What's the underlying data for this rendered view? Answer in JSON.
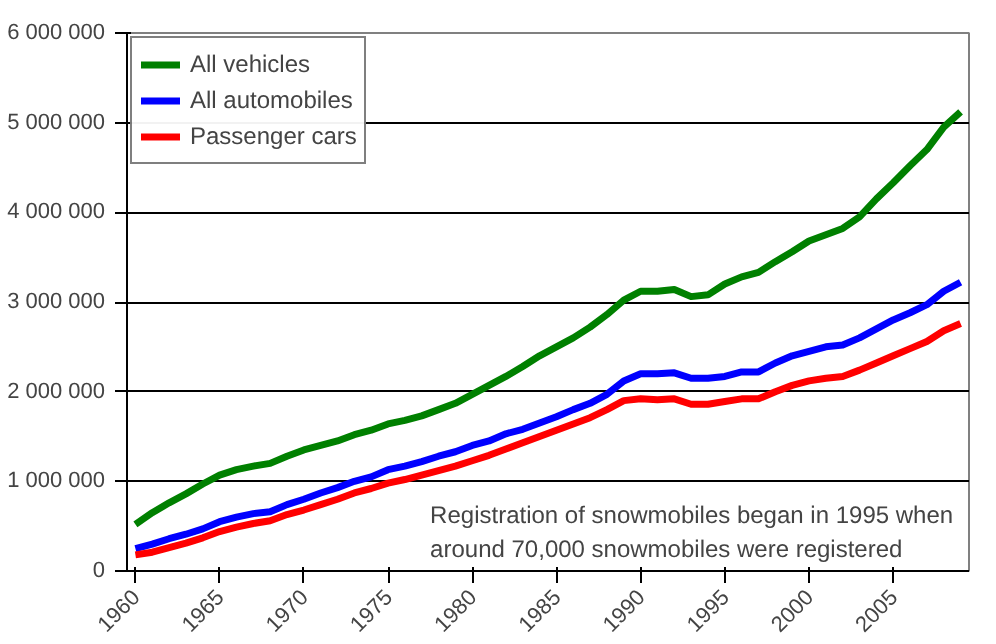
{
  "chart_data": {
    "type": "line",
    "x": [
      1960,
      1961,
      1962,
      1963,
      1964,
      1965,
      1966,
      1967,
      1968,
      1969,
      1970,
      1971,
      1972,
      1973,
      1974,
      1975,
      1976,
      1977,
      1978,
      1979,
      1980,
      1981,
      1982,
      1983,
      1984,
      1985,
      1986,
      1987,
      1988,
      1989,
      1990,
      1991,
      1992,
      1993,
      1994,
      1995,
      1996,
      1997,
      1998,
      1999,
      2000,
      2001,
      2002,
      2003,
      2004,
      2005,
      2006,
      2007,
      2008,
      2009
    ],
    "series": [
      {
        "name": "All vehicles",
        "color": "#008000",
        "values": [
          520000,
          650000,
          760000,
          860000,
          970000,
          1070000,
          1130000,
          1170000,
          1200000,
          1280000,
          1350000,
          1400000,
          1450000,
          1520000,
          1570000,
          1640000,
          1680000,
          1730000,
          1800000,
          1870000,
          1970000,
          2070000,
          2170000,
          2280000,
          2400000,
          2500000,
          2600000,
          2720000,
          2860000,
          3020000,
          3120000,
          3120000,
          3140000,
          3060000,
          3080000,
          3200000,
          3280000,
          3330000,
          3450000,
          3560000,
          3680000,
          3750000,
          3820000,
          3950000,
          4150000,
          4330000,
          4520000,
          4700000,
          4950000,
          5120000
        ]
      },
      {
        "name": "All automobiles",
        "color": "#0000ff",
        "values": [
          250000,
          300000,
          360000,
          410000,
          470000,
          550000,
          600000,
          640000,
          660000,
          740000,
          800000,
          870000,
          930000,
          1000000,
          1050000,
          1130000,
          1170000,
          1220000,
          1280000,
          1330000,
          1400000,
          1450000,
          1530000,
          1580000,
          1650000,
          1720000,
          1800000,
          1870000,
          1970000,
          2120000,
          2200000,
          2200000,
          2210000,
          2150000,
          2150000,
          2170000,
          2220000,
          2220000,
          2320000,
          2400000,
          2450000,
          2500000,
          2520000,
          2600000,
          2700000,
          2800000,
          2880000,
          2970000,
          3120000,
          3220000
        ]
      },
      {
        "name": "Passenger cars",
        "color": "#ff0000",
        "values": [
          180000,
          210000,
          260000,
          310000,
          370000,
          440000,
          490000,
          530000,
          560000,
          630000,
          680000,
          740000,
          800000,
          870000,
          920000,
          980000,
          1020000,
          1070000,
          1120000,
          1170000,
          1230000,
          1290000,
          1360000,
          1430000,
          1500000,
          1570000,
          1640000,
          1710000,
          1800000,
          1900000,
          1920000,
          1910000,
          1920000,
          1860000,
          1860000,
          1890000,
          1920000,
          1920000,
          2000000,
          2070000,
          2120000,
          2150000,
          2170000,
          2240000,
          2320000,
          2400000,
          2480000,
          2560000,
          2680000,
          2760000
        ]
      }
    ],
    "xlim": [
      1959.5,
      2009.5
    ],
    "xticks": [
      1960,
      1965,
      1970,
      1975,
      1980,
      1985,
      1990,
      1995,
      2000,
      2005
    ],
    "ylim": [
      0,
      6000000
    ],
    "yticks": [
      0,
      {
        "value": 1000000,
        "label": "1 000 000"
      },
      {
        "value": 2000000,
        "label": "2 000 000"
      },
      {
        "value": 3000000,
        "label": "3 000 000"
      },
      {
        "value": 4000000,
        "label": "4 000 000"
      },
      {
        "value": 5000000,
        "label": "5 000 000"
      },
      {
        "value": 6000000,
        "label": "6 000 000"
      }
    ],
    "grid": "y",
    "legend": "top left",
    "marker": "none",
    "line_style": "solid",
    "annotations": [
      "Registration of snowmobiles began in 1995 when\naround 70,000 snowmobiles were registered"
    ]
  }
}
